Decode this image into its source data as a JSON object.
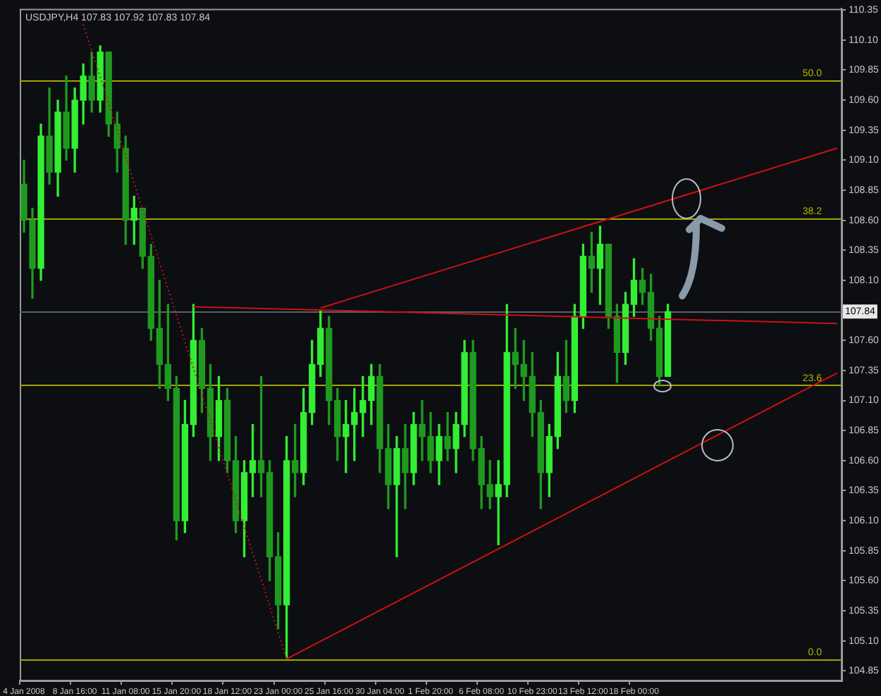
{
  "chart_data": {
    "type": "candlestick",
    "title": "USDJPY,H4 107.83 107.92 107.83 107.84",
    "colors": [
      "#1f9a1f",
      "#1f9a1f",
      "#33ee33",
      "#1f9a1f",
      "#33ee33",
      "#1f9a1f",
      "#33ee33",
      "#33ee33",
      "#1f9a1f",
      "#33ee33",
      "#1f9a1f",
      "#1f9a1f",
      "#1f9a1f",
      "#33ee33",
      "#1f9a1f",
      "#1f9a1f",
      "#1f9a1f",
      "#1f9a1f",
      "#1f9a1f",
      "#33ee33",
      "#33ee33",
      "#1f9a1f",
      "#1f9a1f",
      "#33ee33",
      "#1f9a1f",
      "#1f9a1f",
      "#33ee33",
      "#33ee33",
      "#1f9a1f",
      "#1f9a1f",
      "#1f9a1f",
      "#33ee33",
      "#1f9a1f",
      "#33ee33",
      "#33ee33",
      "#33ee33",
      "#1f9a1f",
      "#1f9a1f",
      "#33ee33",
      "#33ee33",
      "#33ee33",
      "#33ee33",
      "#1f9a1f",
      "#1f9a1f",
      "#33ee33",
      "#1f9a1f",
      "#33ee33",
      "#1f9a1f",
      "#1f9a1f",
      "#33ee33",
      "#1f9a1f",
      "#33ee33",
      "#33ee33",
      "#1f9a1f",
      "#1f9a1f",
      "#1f9a1f",
      "#33ee33",
      "#33ee33",
      "#1f9a1f",
      "#1f9a1f",
      "#1f9a1f",
      "#1f9a1f",
      "#33ee33",
      "#33ee33",
      "#1f9a1f",
      "#33ee33",
      "#33ee33",
      "#1f9a1f",
      "#33ee33",
      "#1f9a1f",
      "#1f9a1f",
      "#33ee33",
      "#33ee33",
      "#1f9a1f",
      "#1f9a1f",
      "#1f9a1f",
      "#33ee33",
      null,
      null,
      null,
      null,
      null,
      null,
      null,
      null,
      null,
      null,
      null,
      null,
      null,
      null,
      null,
      null,
      null,
      null,
      null,
      null
    ],
    "categories": [
      "4 Jan 2008",
      null,
      null,
      null,
      null,
      null,
      "8 Jan 16:00",
      null,
      null,
      null,
      null,
      null,
      "11 Jan 08:00",
      null,
      null,
      null,
      null,
      null,
      "15 Jan 20:00",
      null,
      null,
      null,
      null,
      null,
      "18 Jan 12:00",
      null,
      null,
      null,
      null,
      null,
      "23 Jan 00:00",
      null,
      null,
      null,
      null,
      null,
      "25 Jan 16:00",
      null,
      null,
      null,
      null,
      null,
      "30 Jan 04:00",
      null,
      null,
      null,
      null,
      null,
      "1 Feb 20:00",
      null,
      null,
      null,
      null,
      null,
      "6 Feb 08:00",
      null,
      null,
      null,
      null,
      null,
      "10 Feb 23:00",
      null,
      null,
      null,
      null,
      null,
      "13 Feb 12:00",
      null,
      null,
      null,
      null,
      null,
      "18 Feb 00:00",
      null,
      null,
      null,
      null,
      null,
      null,
      null,
      null,
      null,
      null,
      null,
      null,
      null,
      null,
      null,
      null,
      null,
      null,
      null,
      null,
      null,
      null,
      null,
      null
    ],
    "ohlc": [
      [
        108.9,
        109.1,
        108.5,
        108.6
      ],
      [
        108.6,
        108.7,
        107.95,
        108.2
      ],
      [
        108.2,
        109.4,
        108.1,
        109.3
      ],
      [
        109.3,
        109.7,
        108.9,
        109.0
      ],
      [
        109.0,
        109.6,
        108.8,
        109.5
      ],
      [
        109.5,
        109.8,
        109.1,
        109.2
      ],
      [
        109.2,
        109.7,
        109.0,
        109.6
      ],
      [
        109.6,
        109.9,
        109.4,
        109.8
      ],
      [
        109.8,
        110.0,
        109.5,
        109.6
      ],
      [
        109.6,
        110.05,
        109.5,
        110.0
      ],
      [
        110.0,
        110.0,
        109.3,
        109.4
      ],
      [
        109.4,
        109.5,
        109.0,
        109.2
      ],
      [
        109.2,
        109.3,
        108.4,
        108.6
      ],
      [
        108.6,
        108.8,
        108.4,
        108.7
      ],
      [
        108.7,
        108.7,
        108.2,
        108.3
      ],
      [
        108.3,
        108.4,
        107.6,
        107.7
      ],
      [
        107.7,
        108.1,
        107.2,
        107.4
      ],
      [
        107.4,
        107.9,
        107.1,
        107.2
      ],
      [
        107.2,
        107.3,
        105.94,
        106.1
      ],
      [
        106.1,
        107.1,
        106.0,
        106.9
      ],
      [
        106.9,
        107.9,
        106.8,
        107.6
      ],
      [
        107.6,
        107.7,
        107.0,
        107.2
      ],
      [
        107.2,
        107.4,
        106.6,
        106.8
      ],
      [
        106.8,
        107.3,
        106.6,
        107.1
      ],
      [
        107.1,
        107.2,
        106.5,
        106.6
      ],
      [
        106.6,
        106.8,
        106.0,
        106.1
      ],
      [
        106.1,
        106.6,
        105.8,
        106.5
      ],
      [
        106.5,
        106.9,
        106.3,
        106.6
      ],
      [
        106.6,
        107.3,
        106.3,
        106.5
      ],
      [
        106.5,
        106.6,
        105.6,
        105.8
      ],
      [
        105.8,
        106.0,
        105.2,
        105.4
      ],
      [
        105.4,
        106.8,
        104.96,
        106.6
      ],
      [
        106.6,
        106.9,
        106.3,
        106.5
      ],
      [
        106.5,
        107.2,
        106.4,
        107.0
      ],
      [
        107.0,
        107.6,
        106.9,
        107.4
      ],
      [
        107.4,
        107.85,
        107.3,
        107.7
      ],
      [
        107.7,
        107.8,
        106.9,
        107.1
      ],
      [
        107.1,
        107.2,
        106.6,
        106.8
      ],
      [
        106.8,
        107.1,
        106.5,
        106.9
      ],
      [
        106.9,
        107.2,
        106.6,
        107.0
      ],
      [
        107.0,
        107.3,
        106.8,
        107.1
      ],
      [
        107.1,
        107.4,
        106.9,
        107.3
      ],
      [
        107.3,
        107.4,
        106.5,
        106.7
      ],
      [
        106.7,
        106.9,
        106.2,
        106.4
      ],
      [
        106.4,
        106.8,
        105.8,
        106.7
      ],
      [
        106.7,
        106.9,
        106.2,
        106.5
      ],
      [
        106.5,
        107.0,
        106.4,
        106.9
      ],
      [
        106.9,
        107.1,
        106.6,
        106.8
      ],
      [
        106.8,
        107.0,
        106.5,
        106.6
      ],
      [
        106.6,
        106.9,
        106.4,
        106.8
      ],
      [
        106.8,
        107.0,
        106.6,
        106.7
      ],
      [
        106.7,
        107.0,
        106.5,
        106.9
      ],
      [
        106.9,
        107.6,
        106.8,
        107.5
      ],
      [
        107.5,
        107.6,
        106.6,
        106.7
      ],
      [
        106.7,
        106.8,
        106.2,
        106.4
      ],
      [
        106.4,
        106.6,
        106.2,
        106.3
      ],
      [
        106.3,
        106.6,
        105.9,
        106.4
      ],
      [
        106.4,
        107.9,
        106.3,
        107.5
      ],
      [
        107.5,
        107.7,
        107.2,
        107.4
      ],
      [
        107.4,
        107.6,
        107.1,
        107.3
      ],
      [
        107.3,
        107.5,
        106.8,
        107.0
      ],
      [
        107.0,
        107.1,
        106.2,
        106.5
      ],
      [
        106.5,
        106.9,
        106.3,
        106.8
      ],
      [
        106.8,
        107.5,
        106.7,
        107.3
      ],
      [
        107.3,
        107.6,
        107.0,
        107.1
      ],
      [
        107.1,
        107.9,
        107.0,
        107.8
      ],
      [
        107.8,
        108.4,
        107.7,
        108.3
      ],
      [
        108.3,
        108.5,
        108.0,
        108.2
      ],
      [
        108.2,
        108.55,
        107.9,
        108.4
      ],
      [
        108.4,
        108.4,
        107.7,
        107.8
      ],
      [
        107.8,
        107.9,
        107.25,
        107.5
      ],
      [
        107.5,
        108.0,
        107.4,
        107.9
      ],
      [
        107.9,
        108.28,
        107.8,
        108.1
      ],
      [
        108.1,
        108.2,
        107.9,
        108.0
      ],
      [
        108.0,
        108.15,
        107.6,
        107.7
      ],
      [
        107.7,
        107.8,
        107.22,
        107.3
      ],
      [
        107.3,
        107.9,
        107.3,
        107.84
      ],
      null,
      null,
      null,
      null,
      null,
      null,
      null,
      null,
      null,
      null,
      null,
      null,
      null,
      null,
      null,
      null,
      null,
      null,
      null,
      null
    ],
    "series": [
      {
        "type": "line",
        "color": "#cc1111",
        "line_style": "dotted",
        "values": [
          null,
          null,
          null,
          null,
          null,
          null,
          null,
          110.23,
          null,
          null,
          null,
          null,
          null,
          null,
          null,
          null,
          null,
          null,
          null,
          null,
          null,
          null,
          null,
          null,
          null,
          null,
          null,
          null,
          null,
          null,
          null,
          104.95,
          null,
          null,
          null,
          null,
          null,
          null,
          null,
          null,
          null,
          null,
          null,
          null,
          null,
          null,
          null,
          null,
          null,
          null,
          null,
          null,
          null,
          null,
          null,
          null,
          null,
          null,
          null,
          null,
          null,
          null,
          null,
          null,
          null,
          null,
          null,
          null,
          null,
          null,
          null,
          null,
          null,
          null,
          null,
          null,
          null,
          null,
          null,
          null,
          null,
          null,
          null,
          null,
          null,
          null,
          null,
          null,
          null,
          null,
          null,
          null,
          null,
          null,
          null,
          null,
          null
        ]
      },
      {
        "type": "line",
        "color": "#cc1111",
        "line_style": "solid",
        "values": [
          null,
          null,
          null,
          null,
          null,
          null,
          null,
          null,
          null,
          null,
          null,
          null,
          null,
          null,
          null,
          null,
          null,
          null,
          null,
          null,
          null,
          null,
          null,
          null,
          null,
          null,
          null,
          null,
          null,
          null,
          null,
          104.95,
          null,
          null,
          null,
          null,
          null,
          null,
          null,
          null,
          null,
          null,
          null,
          null,
          null,
          null,
          null,
          null,
          null,
          null,
          null,
          null,
          null,
          null,
          null,
          null,
          null,
          null,
          null,
          null,
          null,
          null,
          null,
          null,
          null,
          null,
          null,
          null,
          null,
          null,
          null,
          null,
          null,
          null,
          null,
          null,
          null,
          null,
          null,
          null,
          null,
          null,
          null,
          null,
          null,
          null,
          null,
          null,
          null,
          null,
          null,
          null,
          null,
          null,
          null,
          null,
          107.33
        ]
      },
      {
        "type": "line",
        "color": "#cc1111",
        "line_style": "solid",
        "values": [
          null,
          null,
          null,
          null,
          null,
          null,
          null,
          null,
          null,
          null,
          null,
          null,
          null,
          null,
          null,
          null,
          null,
          null,
          null,
          null,
          null,
          null,
          null,
          null,
          null,
          null,
          null,
          null,
          null,
          null,
          null,
          null,
          null,
          null,
          null,
          107.87,
          null,
          null,
          null,
          null,
          null,
          null,
          null,
          null,
          null,
          null,
          null,
          null,
          null,
          null,
          null,
          null,
          null,
          null,
          null,
          null,
          null,
          null,
          null,
          null,
          null,
          null,
          null,
          null,
          null,
          null,
          null,
          null,
          null,
          null,
          null,
          null,
          null,
          null,
          null,
          null,
          null,
          null,
          null,
          null,
          null,
          null,
          null,
          null,
          null,
          null,
          null,
          null,
          null,
          null,
          null,
          null,
          null,
          null,
          null,
          null,
          109.2
        ]
      },
      {
        "type": "line",
        "color": "#cc1111",
        "line_style": "solid",
        "values": [
          null,
          null,
          null,
          null,
          null,
          null,
          null,
          null,
          null,
          null,
          null,
          null,
          null,
          null,
          null,
          null,
          null,
          null,
          null,
          null,
          107.88,
          null,
          null,
          null,
          null,
          null,
          null,
          null,
          null,
          null,
          null,
          null,
          null,
          null,
          null,
          null,
          null,
          null,
          null,
          null,
          null,
          null,
          null,
          null,
          null,
          null,
          null,
          null,
          null,
          null,
          null,
          null,
          null,
          null,
          null,
          null,
          null,
          null,
          null,
          null,
          null,
          null,
          null,
          null,
          null,
          null,
          null,
          null,
          null,
          null,
          null,
          null,
          null,
          null,
          null,
          null,
          null,
          null,
          null,
          null,
          null,
          null,
          null,
          null,
          null,
          null,
          null,
          null,
          null,
          null,
          null,
          null,
          null,
          null,
          null,
          null,
          107.74
        ]
      }
    ],
    "ylim": [
      104.77,
      110.36
    ],
    "yticks": [
      104.85,
      {
        "value": 105.1,
        "label": "105.10"
      },
      105.35,
      {
        "value": 105.6,
        "label": "105.60"
      },
      105.85,
      {
        "value": 106.1,
        "label": "106.10"
      },
      106.35,
      {
        "value": 106.6,
        "label": "106.60"
      },
      106.85,
      {
        "value": 107.1,
        "label": "107.10"
      },
      107.35,
      {
        "value": 107.6,
        "label": "107.60"
      },
      {
        "value": 108.1,
        "label": "108.10"
      },
      108.35,
      {
        "value": 108.6,
        "label": "108.60"
      },
      108.85,
      {
        "value": 109.1,
        "label": "109.10"
      },
      109.35,
      {
        "value": 109.6,
        "label": "109.60"
      },
      109.85,
      {
        "value": 110.1,
        "label": "110.10"
      },
      110.35
    ],
    "ref_lines": [
      {
        "axis": "y",
        "value": 104.95,
        "color": "#a3a300"
      },
      {
        "axis": "y",
        "value": 107.23,
        "color": "#a3a300"
      },
      {
        "axis": "y",
        "value": 108.62,
        "color": "#a3a300"
      },
      {
        "axis": "y",
        "value": 109.77,
        "color": "#a3a300"
      },
      {
        "axis": "y",
        "value": 107.84,
        "label": "107.84",
        "color": "#5a5f66"
      }
    ],
    "annotations": [
      {
        "text": "0.0",
        "y": 104.95
      },
      {
        "text": "23.6",
        "y": 107.23
      },
      {
        "text": "38.2",
        "y": 108.62
      },
      {
        "text": "50.0",
        "y": 109.77
      }
    ],
    "grid": false,
    "legend": false,
    "marker": "none"
  }
}
